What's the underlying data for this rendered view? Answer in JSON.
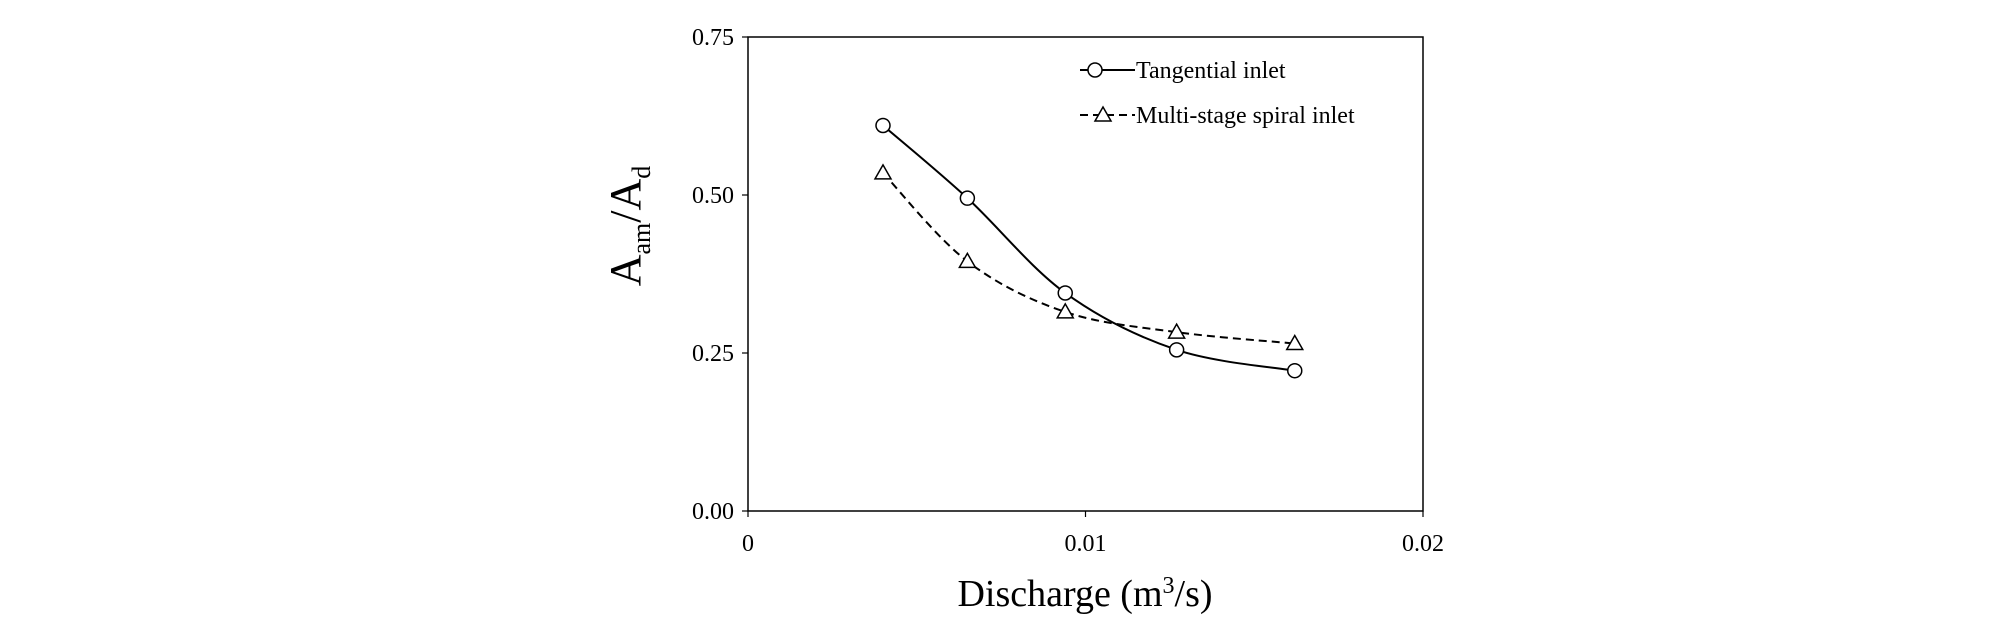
{
  "chart_data": {
    "type": "line",
    "title": "",
    "xlabel": {
      "main": "Discharge (m",
      "sup": "3",
      "tail": "/s)"
    },
    "ylabel": {
      "a": "A",
      "a_sub": "am",
      "slash": "/A",
      "d_sub": "d"
    },
    "xlim": [
      0,
      0.02
    ],
    "ylim": [
      0,
      0.75
    ],
    "xticks": [
      0,
      0.01,
      0.02
    ],
    "xtick_labels": [
      "0",
      "0.01",
      "0.02"
    ],
    "yticks": [
      0,
      0.25,
      0.5,
      0.75
    ],
    "ytick_labels": [
      "0.00",
      "0.25",
      "0.50",
      "0.75"
    ],
    "grid": false,
    "legend_position": "top-right",
    "series": [
      {
        "name": "Tangential inlet",
        "marker": "circle",
        "line": "solid",
        "x": [
          0.004,
          0.0065,
          0.0094,
          0.0127,
          0.0162
        ],
        "y": [
          0.61,
          0.495,
          0.345,
          0.255,
          0.222
        ]
      },
      {
        "name": "Multi-stage spiral inlet",
        "marker": "triangle",
        "line": "dashed",
        "x": [
          0.004,
          0.0065,
          0.0094,
          0.0127,
          0.0162
        ],
        "y": [
          0.535,
          0.395,
          0.315,
          0.283,
          0.265
        ]
      }
    ]
  }
}
